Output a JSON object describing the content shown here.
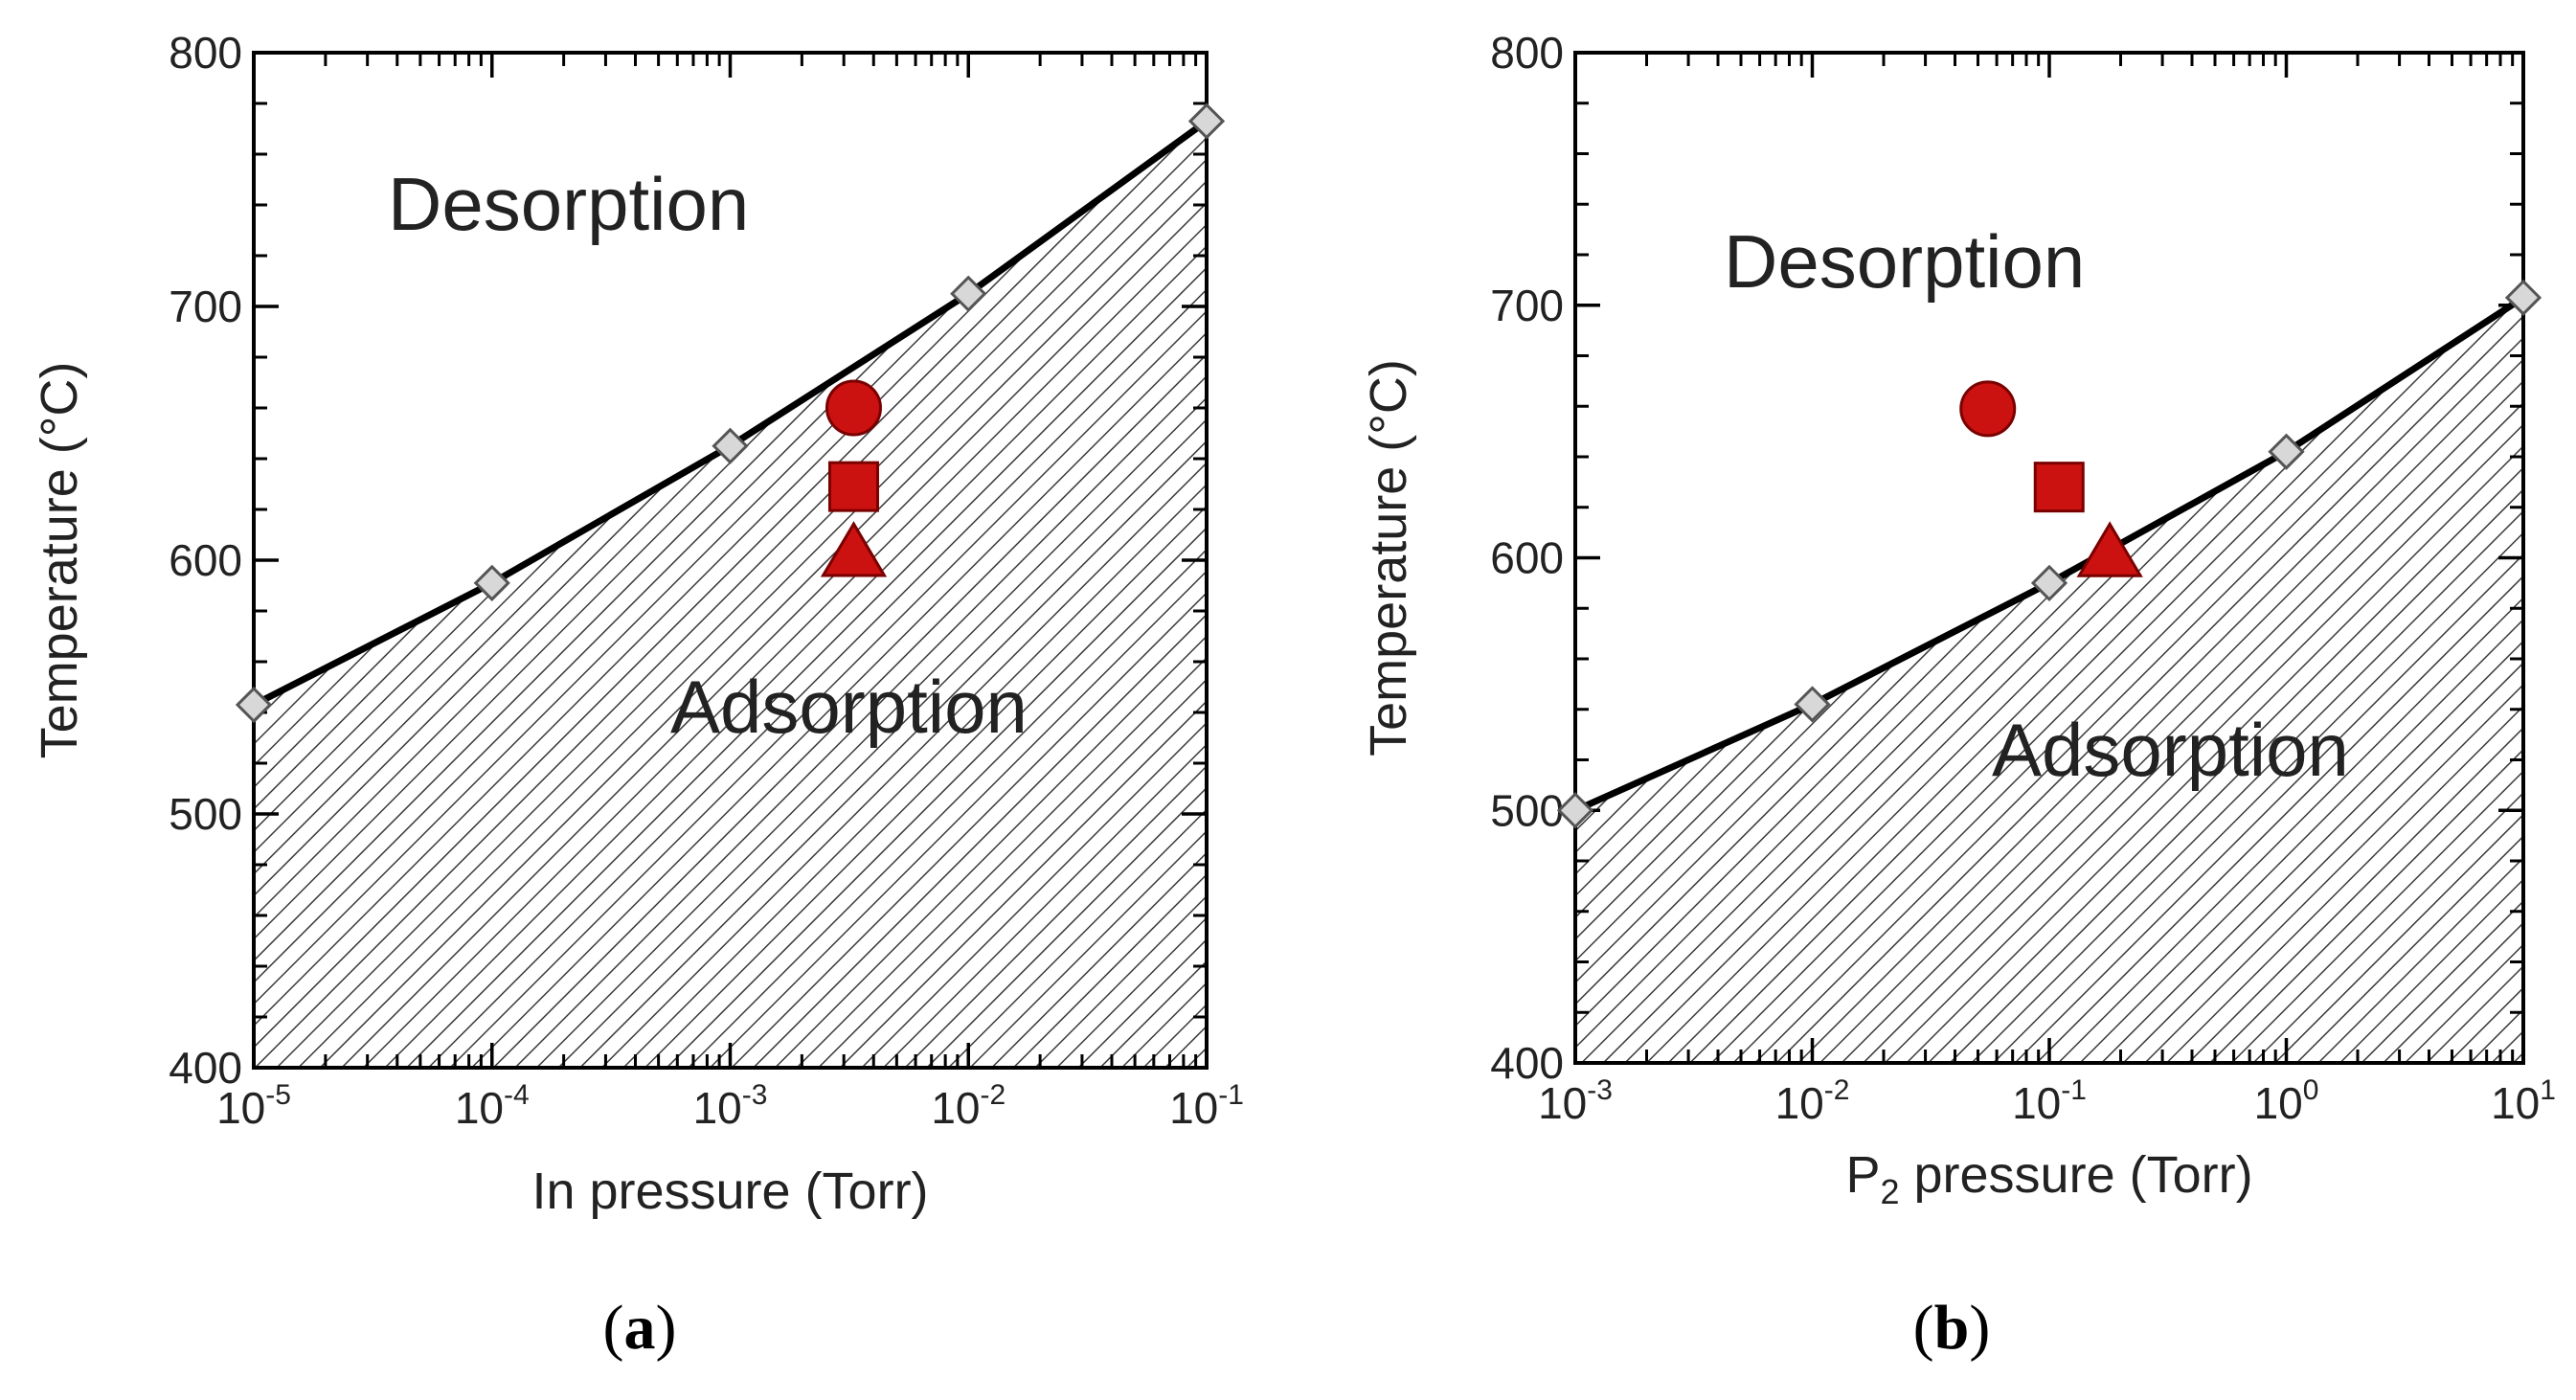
{
  "chart_data": [
    {
      "type": "line",
      "panel": "a",
      "caption": {
        "open": "(",
        "letter": "a",
        "close": ")"
      },
      "xlabel": "In pressure (Torr)",
      "ylabel": "Temperature (°C)",
      "xscale": "log",
      "xlim": [
        1e-05,
        0.1
      ],
      "ylim": [
        400,
        800
      ],
      "xticks": [
        {
          "value": 1e-05,
          "base": "10",
          "exp": "-5"
        },
        {
          "value": 0.0001,
          "base": "10",
          "exp": "-4"
        },
        {
          "value": 0.001,
          "base": "10",
          "exp": "-3"
        },
        {
          "value": 0.01,
          "base": "10",
          "exp": "-2"
        },
        {
          "value": 0.1,
          "base": "10",
          "exp": "-1"
        }
      ],
      "yticks": [
        400,
        500,
        600,
        700,
        800
      ],
      "boundary": {
        "name": "Desorption/Adsorption boundary",
        "x": [
          1e-05,
          0.0001,
          0.001,
          0.01,
          0.1
        ],
        "y": [
          543,
          591,
          645,
          705,
          773
        ],
        "marker": "diamond"
      },
      "regions": {
        "upper": "Desorption",
        "lower": "Adsorption",
        "lower_fill": "hatched"
      },
      "points": [
        {
          "shape": "circle",
          "x": 0.0033,
          "y": 660
        },
        {
          "shape": "square",
          "x": 0.0033,
          "y": 629
        },
        {
          "shape": "triangle",
          "x": 0.0033,
          "y": 603
        }
      ]
    },
    {
      "type": "line",
      "panel": "b",
      "caption": {
        "open": "(",
        "letter": "b",
        "close": ")"
      },
      "xlabel": "P2 pressure (Torr)",
      "xlabel_parts": {
        "pre": "P",
        "sub": "2",
        "post": " pressure (Torr)"
      },
      "ylabel": "Temperature (°C)",
      "xscale": "log",
      "xlim": [
        0.001,
        10
      ],
      "ylim": [
        400,
        800
      ],
      "xticks": [
        {
          "value": 0.001,
          "base": "10",
          "exp": "-3"
        },
        {
          "value": 0.01,
          "base": "10",
          "exp": "-2"
        },
        {
          "value": 0.1,
          "base": "10",
          "exp": "-1"
        },
        {
          "value": 1,
          "base": "10",
          "exp": "0"
        },
        {
          "value": 10,
          "base": "10",
          "exp": "1"
        }
      ],
      "yticks": [
        400,
        500,
        600,
        700,
        800
      ],
      "boundary": {
        "name": "Desorption/Adsorption boundary",
        "x": [
          0.001,
          0.01,
          0.1,
          1,
          10
        ],
        "y": [
          500,
          542,
          590,
          642,
          703
        ],
        "marker": "diamond"
      },
      "regions": {
        "upper": "Desorption",
        "lower": "Adsorption",
        "lower_fill": "hatched"
      },
      "points": [
        {
          "shape": "circle",
          "x": 0.055,
          "y": 659
        },
        {
          "shape": "square",
          "x": 0.11,
          "y": 628
        },
        {
          "shape": "triangle",
          "x": 0.18,
          "y": 602
        }
      ]
    }
  ],
  "colors": {
    "marker_fill": "#cc1111",
    "marker_stroke": "#7a0000",
    "diamond_fill": "#d8d8d8",
    "diamond_stroke": "#555555",
    "line": "#000000",
    "hatch": "#3a3a3a"
  }
}
